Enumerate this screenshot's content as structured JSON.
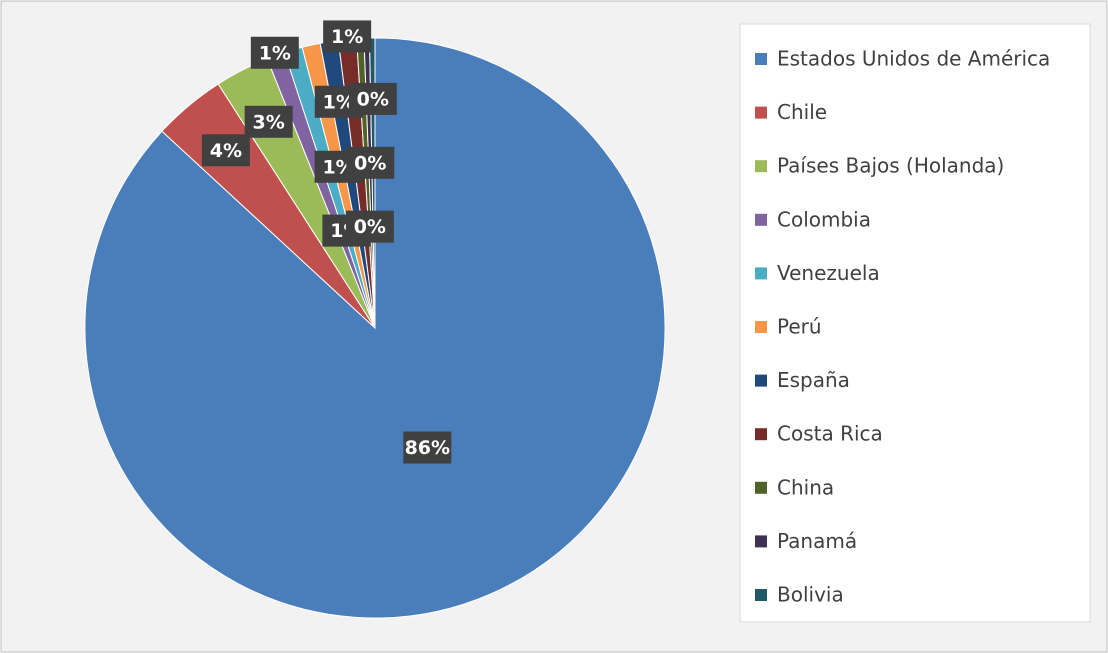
{
  "chart_data": {
    "type": "pie",
    "categories": [
      "Estados Unidos de América",
      "Chile",
      "Países Bajos (Holanda)",
      "Colombia",
      "Venezuela",
      "Perú",
      "España",
      "Costa Rica",
      "China",
      "Panamá",
      "Bolivia"
    ],
    "values": [
      86,
      4,
      3,
      1,
      1,
      1,
      1,
      1,
      0.4,
      0.3,
      0.3
    ],
    "value_labels": [
      "86%",
      "4%",
      "3%",
      "1%",
      "1%",
      "1%",
      "1%",
      "1%",
      "0%",
      "0%",
      "0%"
    ],
    "colors": [
      "#4a7ebb",
      "#c0504d",
      "#9bbb59",
      "#8064a2",
      "#4bacc6",
      "#f79646",
      "#1f497d",
      "#772c2a",
      "#4f6228",
      "#3f3151",
      "#215968"
    ],
    "legend": "right"
  }
}
